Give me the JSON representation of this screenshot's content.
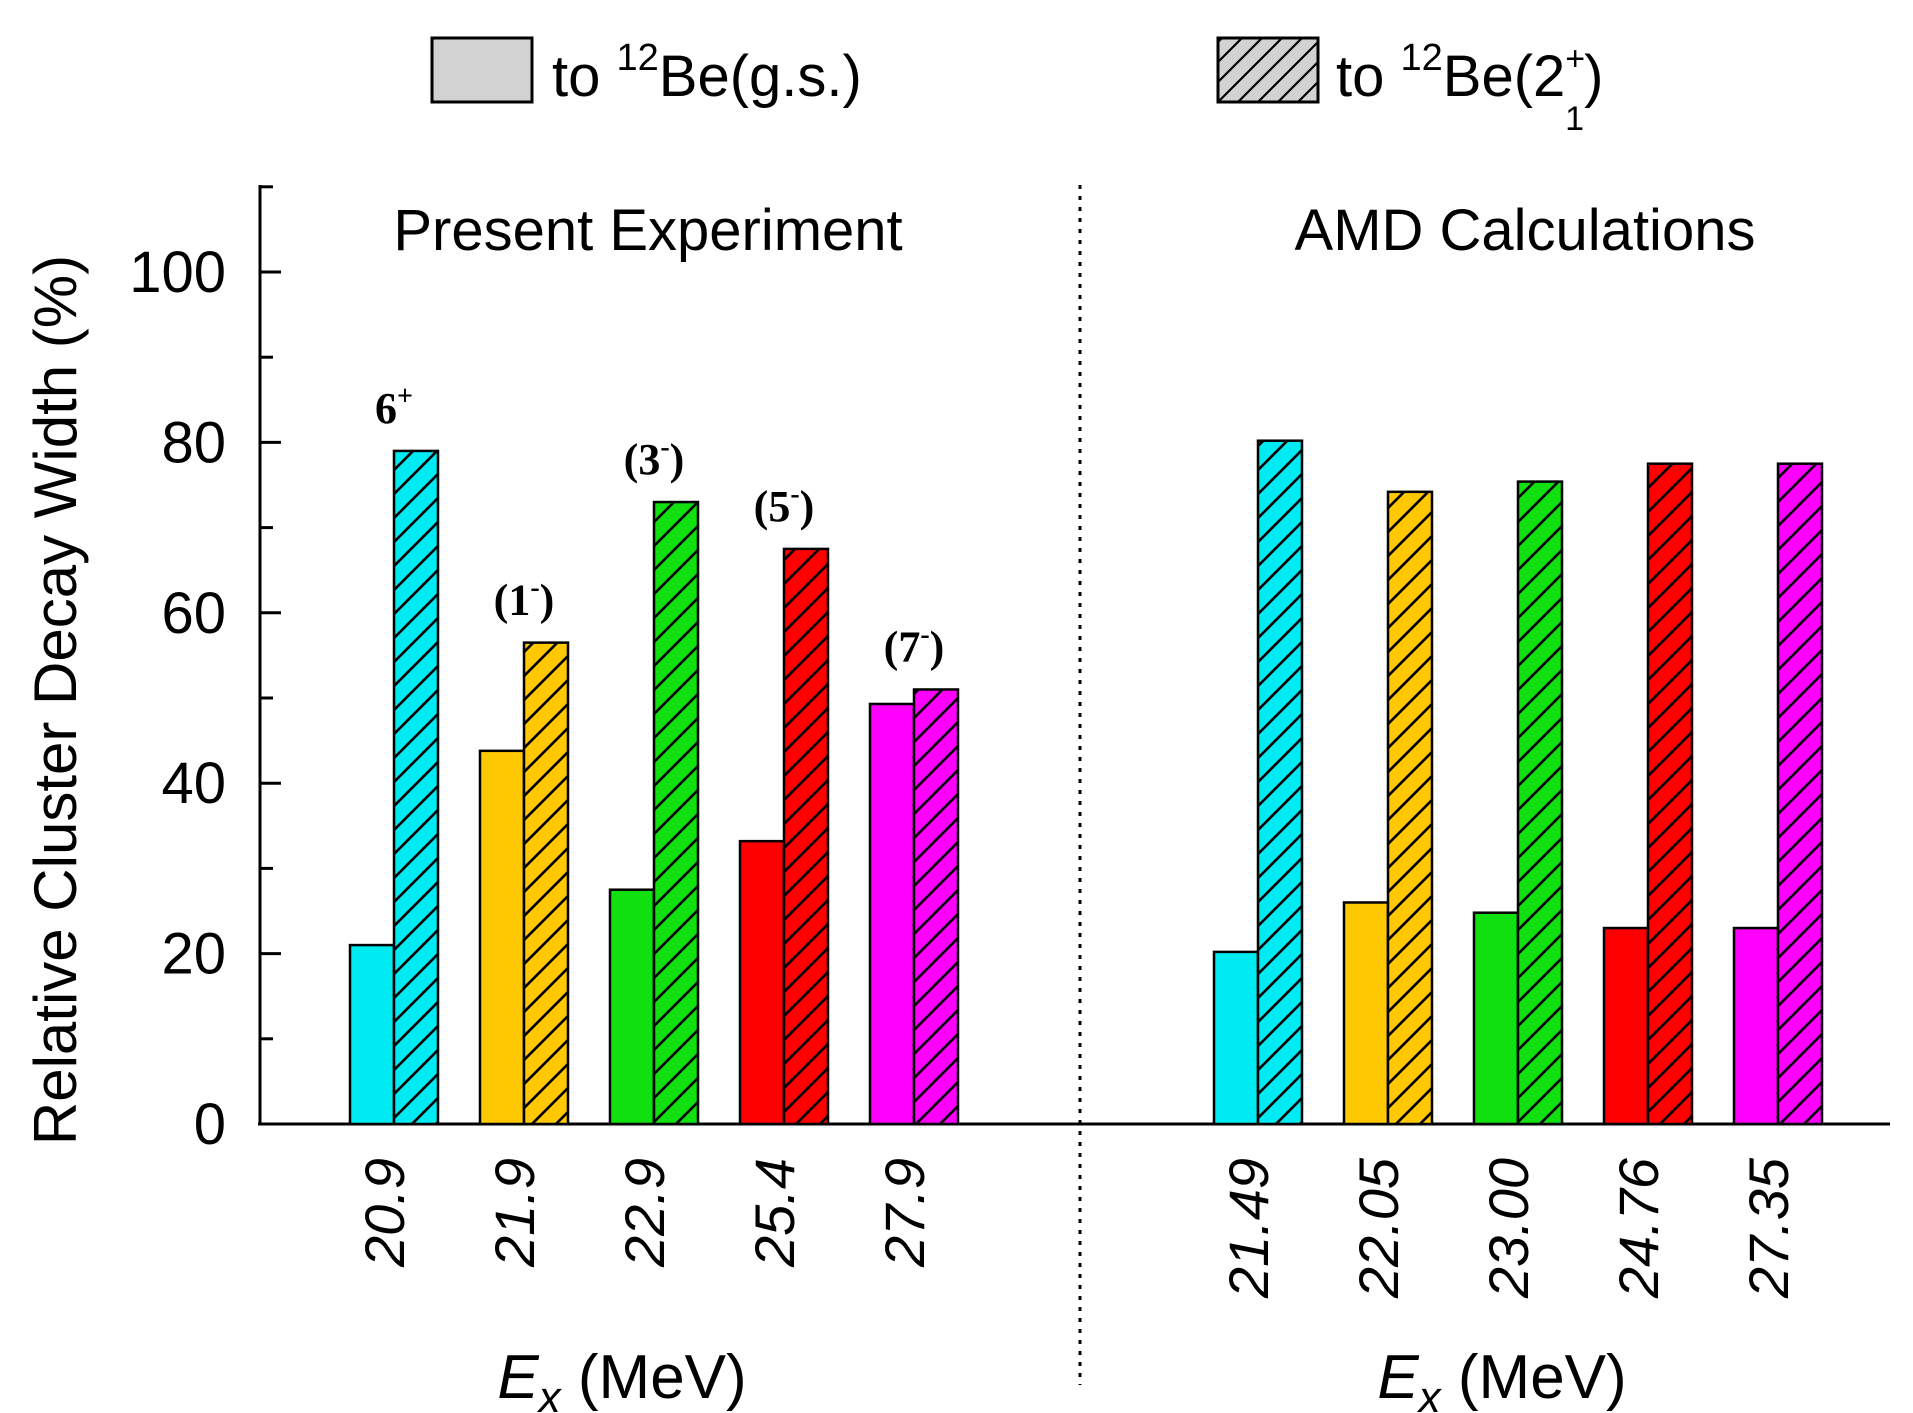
{
  "chart_data": {
    "type": "bar",
    "ylabel": "Relative Cluster Decay Width (%)",
    "ylim": [
      0,
      110
    ],
    "yticks": [
      "0",
      "20",
      "40",
      "60",
      "80",
      "100"
    ],
    "legend": {
      "placement": "top",
      "entries": [
        {
          "prefix": "to ",
          "sup": "12",
          "main": "Be(g.s.)",
          "pattern": "solid"
        },
        {
          "prefix": "to ",
          "sup": "12",
          "main": "Be(2",
          "state_sup": "+",
          "state_sub": "1",
          "close": ")",
          "pattern": "hatched"
        }
      ]
    },
    "panels": [
      {
        "title": "Present Experiment",
        "xlabel_var": "E",
        "xlabel_sub": "x",
        "xlabel_unit": " (MeV)",
        "categories": [
          "20.9",
          "21.9",
          "22.9",
          "25.4",
          "27.9"
        ],
        "spins": [
          {
            "open": "",
            "num": "6",
            "sup": "+",
            "close": ""
          },
          {
            "open": "(",
            "num": "1",
            "sup": "-",
            "close": ")"
          },
          {
            "open": "(",
            "num": "3",
            "sup": "-",
            "close": ")"
          },
          {
            "open": "(",
            "num": "5",
            "sup": "-",
            "close": ")"
          },
          {
            "open": "(",
            "num": "7",
            "sup": "-",
            "close": ")"
          }
        ],
        "series": [
          {
            "values": [
              21,
              43.8,
              27.5,
              33.2,
              49.3
            ]
          },
          {
            "values": [
              79,
              56.5,
              73,
              67.5,
              51
            ]
          }
        ]
      },
      {
        "title": "AMD Calculations",
        "xlabel_var": "E",
        "xlabel_sub": "x",
        "xlabel_unit": " (MeV)",
        "categories": [
          "21.49",
          "22.05",
          "23.00",
          "24.76",
          "27.35"
        ],
        "series": [
          {
            "values": [
              20.2,
              26,
              24.8,
              23,
              23
            ]
          },
          {
            "values": [
              80.2,
              74.2,
              75.4,
              77.5,
              77.5
            ]
          }
        ]
      }
    ],
    "colors": [
      "#00eaf2",
      "#ffc800",
      "#10e010",
      "#ff0000",
      "#ff00ff"
    ]
  }
}
